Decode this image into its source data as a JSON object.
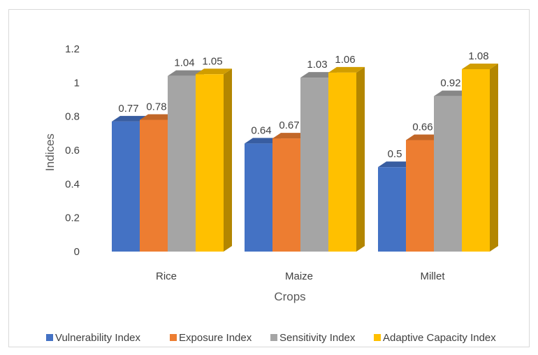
{
  "chart_data": {
    "type": "bar",
    "title": "",
    "xlabel": "Crops",
    "ylabel": "Indices",
    "ylim": [
      0,
      1.2
    ],
    "yticks": [
      "0",
      "0.2",
      "0.4",
      "0.6",
      "0.8",
      "1",
      "1.2"
    ],
    "grid": false,
    "legend_position": "bottom",
    "categories": [
      "Rice",
      "Maize",
      "Millet"
    ],
    "series": [
      {
        "name": "Vulnerability Index",
        "color": "#4472c4",
        "values": [
          0.77,
          0.64,
          0.5
        ],
        "labels": [
          "0.77",
          "0.64",
          "0.5"
        ]
      },
      {
        "name": "Exposure Index",
        "color": "#ed7d31",
        "values": [
          0.78,
          0.67,
          0.66
        ],
        "labels": [
          "0.78",
          "0.67",
          "0.66"
        ]
      },
      {
        "name": "Sensitivity Index",
        "color": "#a5a5a5",
        "values": [
          1.04,
          1.03,
          0.92
        ],
        "labels": [
          "1.04",
          "1.03",
          "0.92"
        ]
      },
      {
        "name": "Adaptive Capacity Index",
        "color": "#ffc000",
        "values": [
          1.05,
          1.06,
          1.08
        ],
        "labels": [
          "1.05",
          "1.06",
          "1.08"
        ]
      }
    ]
  }
}
